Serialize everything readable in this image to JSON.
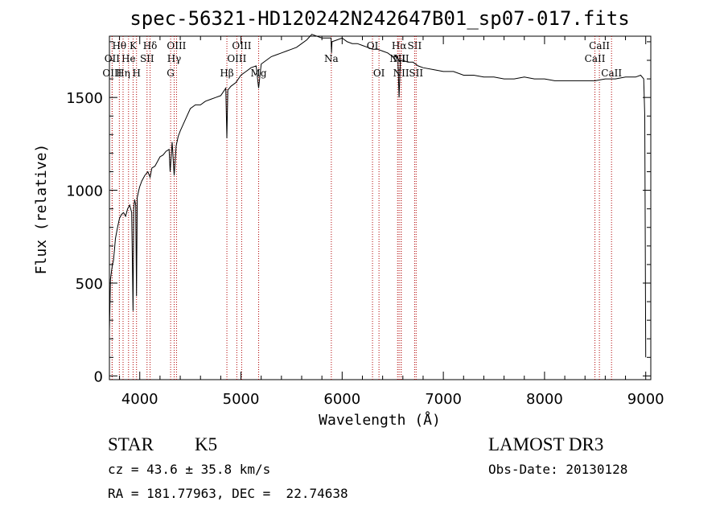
{
  "chart_data": {
    "type": "line",
    "title": "spec-56321-HD120242N242647B01_sp07-017.fits",
    "xlabel": "Wavelength (Å)",
    "ylabel": "Flux (relative)",
    "xlim": [
      3700,
      9050
    ],
    "ylim": [
      -20,
      1830
    ],
    "xticks": [
      4000,
      5000,
      6000,
      7000,
      8000,
      9000
    ],
    "yticks": [
      0,
      500,
      1000,
      1500
    ],
    "series": [
      {
        "name": "spectrum",
        "x": [
          3700,
          3710,
          3720,
          3730,
          3740,
          3750,
          3760,
          3780,
          3800,
          3820,
          3840,
          3860,
          3880,
          3900,
          3920,
          3934,
          3940,
          3950,
          3960,
          3968,
          3975,
          3990,
          4000,
          4020,
          4050,
          4080,
          4102,
          4120,
          4150,
          4180,
          4200,
          4230,
          4260,
          4290,
          4300,
          4320,
          4340,
          4360,
          4380,
          4400,
          4450,
          4500,
          4550,
          4600,
          4650,
          4700,
          4750,
          4800,
          4850,
          4861,
          4870,
          4900,
          4950,
          5000,
          5050,
          5100,
          5150,
          5175,
          5200,
          5250,
          5300,
          5350,
          5400,
          5450,
          5500,
          5550,
          5600,
          5650,
          5700,
          5750,
          5800,
          5850,
          5890,
          5895,
          5900,
          5950,
          6000,
          6050,
          6100,
          6150,
          6200,
          6250,
          6300,
          6350,
          6400,
          6450,
          6500,
          6550,
          6563,
          6575,
          6600,
          6650,
          6700,
          6750,
          6800,
          6900,
          7000,
          7100,
          7200,
          7300,
          7400,
          7500,
          7600,
          7700,
          7800,
          7900,
          8000,
          8100,
          8200,
          8300,
          8400,
          8500,
          8600,
          8700,
          8800,
          8900,
          8950,
          8980,
          8990,
          9000
        ],
        "y": [
          240,
          520,
          560,
          600,
          620,
          680,
          740,
          800,
          850,
          870,
          880,
          860,
          900,
          920,
          880,
          350,
          900,
          950,
          920,
          430,
          960,
          1000,
          1020,
          1050,
          1080,
          1100,
          1070,
          1120,
          1130,
          1160,
          1180,
          1190,
          1210,
          1220,
          1100,
          1260,
          1080,
          1240,
          1290,
          1320,
          1380,
          1440,
          1460,
          1460,
          1480,
          1490,
          1500,
          1510,
          1550,
          1280,
          1540,
          1560,
          1580,
          1620,
          1640,
          1660,
          1670,
          1550,
          1680,
          1700,
          1720,
          1730,
          1740,
          1750,
          1760,
          1770,
          1790,
          1810,
          1840,
          1830,
          1820,
          1820,
          1820,
          1740,
          1800,
          1810,
          1820,
          1800,
          1790,
          1790,
          1780,
          1770,
          1760,
          1760,
          1750,
          1740,
          1720,
          1720,
          1500,
          1700,
          1700,
          1690,
          1690,
          1670,
          1660,
          1650,
          1640,
          1640,
          1620,
          1620,
          1610,
          1610,
          1600,
          1600,
          1610,
          1600,
          1600,
          1590,
          1590,
          1590,
          1590,
          1590,
          1600,
          1600,
          1610,
          1610,
          1620,
          1600,
          1400,
          100
        ]
      }
    ],
    "lines": [
      {
        "label": "Hθ",
        "x": 3798,
        "row": 1
      },
      {
        "label": "OII",
        "x": 3727,
        "row": 2
      },
      {
        "label": "OIII",
        "x": 3727,
        "row": 3
      },
      {
        "label": "He",
        "x": 3889,
        "row": 2
      },
      {
        "label": "Hη",
        "x": 3835,
        "row": 3
      },
      {
        "label": "K",
        "x": 3934,
        "row": 1
      },
      {
        "label": "SII",
        "x": 4072,
        "row": 2
      },
      {
        "label": "H",
        "x": 3968,
        "row": 3
      },
      {
        "label": "Hδ",
        "x": 4102,
        "row": 1
      },
      {
        "label": "OIII",
        "x": 4363,
        "row": 1
      },
      {
        "label": "Hγ",
        "x": 4340,
        "row": 2
      },
      {
        "label": "G",
        "x": 4305,
        "row": 3
      },
      {
        "label": "Hβ",
        "x": 4861,
        "row": 3
      },
      {
        "label": "OIII",
        "x": 5007,
        "row": 1
      },
      {
        "label": "OIII",
        "x": 4959,
        "row": 2
      },
      {
        "label": "Mg",
        "x": 5175,
        "row": 3
      },
      {
        "label": "Na",
        "x": 5893,
        "row": 2
      },
      {
        "label": "OI",
        "x": 6300,
        "row": 1
      },
      {
        "label": "OI",
        "x": 6364,
        "row": 3
      },
      {
        "label": "Hα",
        "x": 6563,
        "row": 1
      },
      {
        "label": "SII",
        "x": 6716,
        "row": 1
      },
      {
        "label": "NII",
        "x": 6548,
        "row": 2
      },
      {
        "label": "NII",
        "x": 6583,
        "row": 2
      },
      {
        "label": "NII",
        "x": 6583,
        "row": 3
      },
      {
        "label": "SII",
        "x": 6731,
        "row": 3
      },
      {
        "label": "CaII",
        "x": 8542,
        "row": 1
      },
      {
        "label": "CaII",
        "x": 8498,
        "row": 2
      },
      {
        "label": "CaII",
        "x": 8662,
        "row": 3
      }
    ]
  },
  "info": {
    "class": "STAR",
    "subclass": "K5",
    "survey": "LAMOST DR3",
    "cz": "cz = 43.6 ± 35.8 km/s",
    "obs_date": "Obs-Date: 20130128",
    "coords": "RA = 181.77963, DEC =  22.74638"
  }
}
